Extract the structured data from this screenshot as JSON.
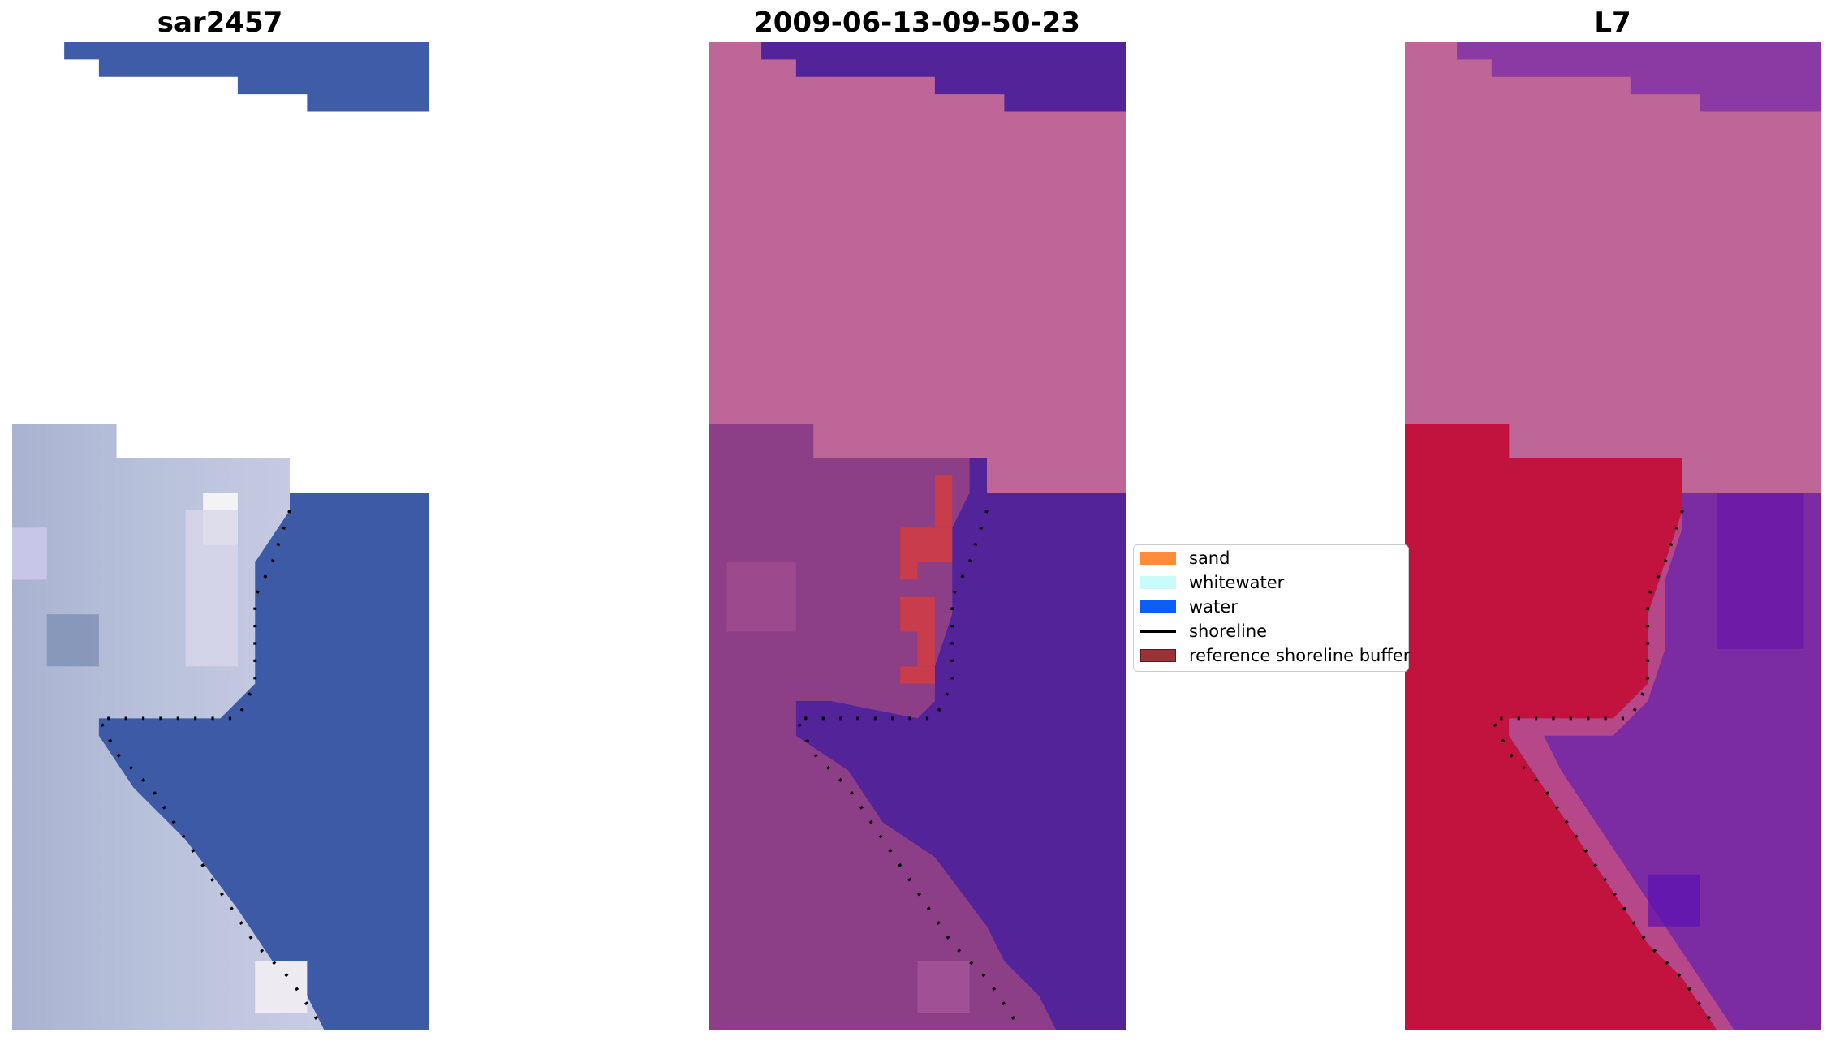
{
  "titles": {
    "left": "sar2457",
    "middle": "2009-06-13-09-50-23",
    "right": "L7"
  },
  "legend": {
    "items": [
      {
        "label": "sand",
        "color": "#ff8c3a",
        "kind": "patch"
      },
      {
        "label": "whitewater",
        "color": "#c9fbfa",
        "kind": "patch"
      },
      {
        "label": "water",
        "color": "#0c5ef5",
        "kind": "patch"
      },
      {
        "label": "shoreline",
        "color": "#000000",
        "kind": "line"
      },
      {
        "label": "reference shoreline buffer",
        "color": "#9b3238",
        "kind": "patch"
      }
    ]
  },
  "colors": {
    "nodata_pink": "#bd6697",
    "water_purple": "#53239a",
    "sea_blue": "#3d5ba8",
    "land_red": "#c2123e",
    "buffer_red": "#c83c4b"
  }
}
